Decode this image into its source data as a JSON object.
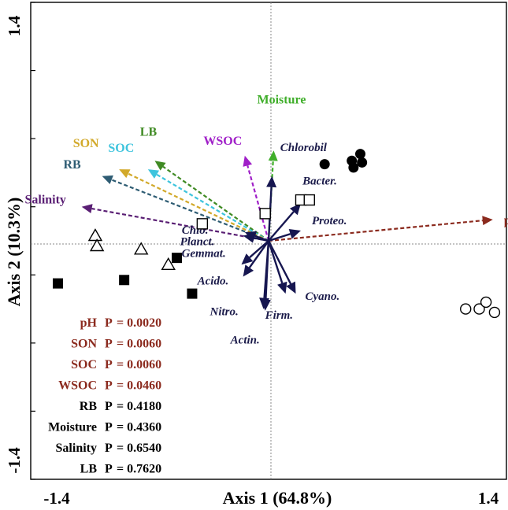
{
  "chart_data": {
    "type": "scatter",
    "subtype": "RDA biplot",
    "xlabel": "Axis 1 (64.8%)",
    "ylabel": "Axis 2 (10.3%)",
    "xlim": [
      -1.4,
      1.4
    ],
    "ylim": [
      -1.4,
      1.4
    ],
    "x_tick_labels": [
      "-1.4",
      "1.4"
    ],
    "y_tick_labels": [
      "1.4",
      "-1.4"
    ],
    "y_ticks": [
      -1.4,
      -1.0,
      -0.6,
      -0.2,
      0.2,
      0.6,
      1.0,
      1.4
    ],
    "reference_lines": {
      "x": 0,
      "y": 0
    },
    "env_vectors": [
      {
        "name": "pH",
        "x": 1.32,
        "y": 0.125,
        "color": "#8b2a1e"
      },
      {
        "name": "Moisture",
        "x": 0.03,
        "y": 0.53,
        "color": "#3fae2a"
      },
      {
        "name": "WSOC",
        "x": -0.14,
        "y": 0.5,
        "color": "#a020c8"
      },
      {
        "name": "LB",
        "x": -0.67,
        "y": 0.47,
        "color": "#3f8a23"
      },
      {
        "name": "SOC",
        "x": -0.71,
        "y": 0.42,
        "color": "#3ec4dd"
      },
      {
        "name": "SON",
        "x": -0.88,
        "y": 0.42,
        "color": "#d2a92a"
      },
      {
        "name": "RB",
        "x": -0.98,
        "y": 0.38,
        "color": "#2e5c73"
      },
      {
        "name": "Salinity",
        "x": -1.1,
        "y": 0.2,
        "color": "#5a1f74"
      }
    ],
    "taxa_vectors": [
      {
        "name": "Chlorobil",
        "x": 0.02,
        "y": 0.38
      },
      {
        "name": "Bacter.",
        "x": 0.19,
        "y": 0.22
      },
      {
        "name": "Proteo.",
        "x": 0.19,
        "y": 0.06
      },
      {
        "name": "Chlo.",
        "x": -0.14,
        "y": 0.05
      },
      {
        "name": "Planct.",
        "x": -0.15,
        "y": 0.03
      },
      {
        "name": "Gemmat.",
        "x": -0.16,
        "y": -0.14
      },
      {
        "name": "Acido.",
        "x": -0.15,
        "y": -0.21
      },
      {
        "name": "Nitro.",
        "x": -0.03,
        "y": -0.4
      },
      {
        "name": "Actin.",
        "x": -0.02,
        "y": -0.41
      },
      {
        "name": "Firm.",
        "x": 0.1,
        "y": -0.31
      },
      {
        "name": "Cyano.",
        "x": 0.16,
        "y": -0.31
      }
    ],
    "sample_groups": [
      {
        "marker": "filled-circle",
        "points": [
          [
            0.33,
            0.45
          ],
          [
            0.49,
            0.47
          ],
          [
            0.54,
            0.51
          ],
          [
            0.55,
            0.46
          ],
          [
            0.5,
            0.43
          ]
        ]
      },
      {
        "marker": "open-square",
        "points": [
          [
            -0.02,
            0.16
          ],
          [
            0.19,
            0.24
          ],
          [
            0.24,
            0.24
          ],
          [
            -0.39,
            0.1
          ]
        ]
      },
      {
        "marker": "open-triangle",
        "points": [
          [
            -1.02,
            0.03
          ],
          [
            -1.01,
            -0.03
          ],
          [
            -0.75,
            -0.05
          ],
          [
            -0.59,
            -0.14
          ]
        ]
      },
      {
        "marker": "filled-square",
        "points": [
          [
            -1.24,
            -0.25
          ],
          [
            -0.85,
            -0.23
          ],
          [
            -0.54,
            -0.1
          ],
          [
            -0.45,
            -0.31
          ]
        ]
      },
      {
        "marker": "open-circle",
        "points": [
          [
            1.16,
            -0.4
          ],
          [
            1.24,
            -0.4
          ],
          [
            1.28,
            -0.36
          ],
          [
            1.33,
            -0.42
          ]
        ]
      }
    ],
    "significance_table": [
      {
        "variable": "pH",
        "p_label": "P",
        "p_value": "= 0.0020",
        "significant": true
      },
      {
        "variable": "SON",
        "p_label": "P",
        "p_value": "= 0.0060",
        "significant": true
      },
      {
        "variable": "SOC",
        "p_label": "P",
        "p_value": "= 0.0060",
        "significant": true
      },
      {
        "variable": "WSOC",
        "p_label": "P",
        "p_value": "= 0.0460",
        "significant": true
      },
      {
        "variable": "RB",
        "p_label": "P",
        "p_value": "= 0.4180",
        "significant": false
      },
      {
        "variable": "Moisture",
        "p_label": "P",
        "p_value": "= 0.4360",
        "significant": false
      },
      {
        "variable": "Salinity",
        "p_label": "P",
        "p_value": "= 0.6540",
        "significant": false
      },
      {
        "variable": "LB",
        "p_label": "P",
        "p_value": "= 0.7620",
        "significant": false
      }
    ],
    "colors": {
      "taxa_arrow": "#161650",
      "significant_text": "#8b2a1e",
      "nonsignificant_text": "#000000"
    }
  }
}
